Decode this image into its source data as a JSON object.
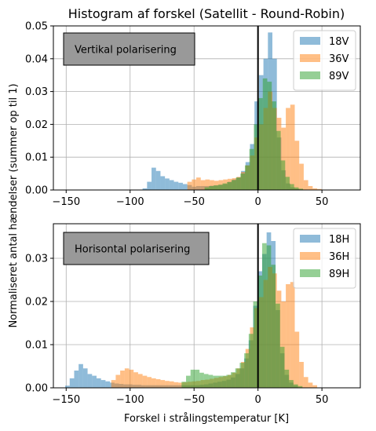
{
  "chart_data": {
    "title": "Histogram af forskel (Satellit - Round-Robin)",
    "xlabel": "Forskel i strålingstemperatur [K]",
    "ylabel": "Normaliseret antal hændelser (summer op til 1)",
    "grid": true,
    "xlim": [
      -160,
      80
    ],
    "xticks": [
      -150,
      -100,
      -50,
      0,
      50
    ],
    "xtick_labels": [
      "−150",
      "−100",
      "−50",
      "0",
      "50"
    ],
    "bin_width": 3.5,
    "vline_x": 0,
    "colors": {
      "c1": "#1f77b4",
      "c2": "#ff7f0e",
      "c3": "#2ca02c"
    },
    "panels": [
      {
        "type": "histogram",
        "annotation": "Vertikal polarisering",
        "legend_position": "top-right",
        "ylim": [
          0,
          0.05
        ],
        "yticks": [
          0,
          0.01,
          0.02,
          0.03,
          0.04,
          0.05
        ],
        "ytick_labels": [
          "0.00",
          "0.01",
          "0.02",
          "0.03",
          "0.04",
          "0.05"
        ],
        "series": [
          {
            "name": "18V",
            "color": "#1f77b4",
            "bins": [
              [
                -88.5,
                0.0005
              ],
              [
                -85,
                0.0025
              ],
              [
                -81.5,
                0.0068
              ],
              [
                -78,
                0.0058
              ],
              [
                -74.5,
                0.0042
              ],
              [
                -71,
                0.0035
              ],
              [
                -67.5,
                0.003
              ],
              [
                -64,
                0.0025
              ],
              [
                -60.5,
                0.0022
              ],
              [
                -57,
                0.0018
              ],
              [
                -53.5,
                0.0015
              ],
              [
                -50,
                0.001
              ],
              [
                -46.5,
                0.0012
              ],
              [
                -43,
                0.0012
              ],
              [
                -39.5,
                0.0012
              ],
              [
                -36,
                0.0013
              ],
              [
                -32.5,
                0.0014
              ],
              [
                -29,
                0.0016
              ],
              [
                -25.5,
                0.0018
              ],
              [
                -22,
                0.0025
              ],
              [
                -18.5,
                0.0032
              ],
              [
                -15,
                0.0038
              ],
              [
                -11.5,
                0.0058
              ],
              [
                -8,
                0.0085
              ],
              [
                -4.5,
                0.014
              ],
              [
                -1,
                0.027
              ],
              [
                2.5,
                0.035
              ],
              [
                6,
                0.04
              ],
              [
                9.5,
                0.048
              ],
              [
                13,
                0.04
              ],
              [
                16.5,
                0.016
              ],
              [
                20,
                0.006
              ],
              [
                23.5,
                0.002
              ],
              [
                27,
                0.0008
              ],
              [
                30.5,
                0.0004
              ]
            ]
          },
          {
            "name": "36V",
            "color": "#ff7f0e",
            "bins": [
              [
                -53.5,
                0.0025
              ],
              [
                -50,
                0.0032
              ],
              [
                -46.5,
                0.0038
              ],
              [
                -43,
                0.003
              ],
              [
                -39.5,
                0.0032
              ],
              [
                -36,
                0.003
              ],
              [
                -32.5,
                0.0028
              ],
              [
                -29,
                0.003
              ],
              [
                -25.5,
                0.0032
              ],
              [
                -22,
                0.0034
              ],
              [
                -18.5,
                0.0036
              ],
              [
                -15,
                0.004
              ],
              [
                -11.5,
                0.0055
              ],
              [
                -8,
                0.0075
              ],
              [
                -4.5,
                0.0105
              ],
              [
                -1,
                0.016
              ],
              [
                2.5,
                0.02
              ],
              [
                6,
                0.025
              ],
              [
                9.5,
                0.03
              ],
              [
                13,
                0.025
              ],
              [
                16.5,
                0.022
              ],
              [
                20,
                0.019
              ],
              [
                23.5,
                0.025
              ],
              [
                27,
                0.026
              ],
              [
                30.5,
                0.015
              ],
              [
                34,
                0.008
              ],
              [
                37.5,
                0.003
              ],
              [
                41,
                0.0012
              ],
              [
                44.5,
                0.0005
              ],
              [
                48,
                0.0003
              ]
            ]
          },
          {
            "name": "89V",
            "color": "#2ca02c",
            "bins": [
              [
                -40,
                0.0008
              ],
              [
                -36.5,
                0.0012
              ],
              [
                -33,
                0.0014
              ],
              [
                -29.5,
                0.0016
              ],
              [
                -26,
                0.002
              ],
              [
                -22.5,
                0.0024
              ],
              [
                -19,
                0.003
              ],
              [
                -15.5,
                0.0038
              ],
              [
                -12,
                0.005
              ],
              [
                -8.5,
                0.0075
              ],
              [
                -5,
                0.0125
              ],
              [
                -1.5,
                0.02
              ],
              [
                2,
                0.028
              ],
              [
                5.5,
                0.034
              ],
              [
                9,
                0.033
              ],
              [
                12.5,
                0.027
              ],
              [
                16,
                0.018
              ],
              [
                19.5,
                0.009
              ],
              [
                23,
                0.004
              ],
              [
                26.5,
                0.0018
              ],
              [
                30,
                0.0008
              ],
              [
                33.5,
                0.0004
              ]
            ]
          }
        ]
      },
      {
        "type": "histogram",
        "annotation": "Horisontal polarisering",
        "legend_position": "top-right",
        "ylim": [
          0,
          0.038
        ],
        "yticks": [
          0,
          0.01,
          0.02,
          0.03
        ],
        "ytick_labels": [
          "0.00",
          "0.01",
          "0.02",
          "0.03"
        ],
        "series": [
          {
            "name": "18H",
            "color": "#1f77b4",
            "bins": [
              [
                -149,
                0.0005
              ],
              [
                -145.5,
                0.0022
              ],
              [
                -142,
                0.004
              ],
              [
                -138.5,
                0.0055
              ],
              [
                -135,
                0.0045
              ],
              [
                -131.5,
                0.0032
              ],
              [
                -128,
                0.0028
              ],
              [
                -124.5,
                0.0022
              ],
              [
                -121,
                0.0018
              ],
              [
                -117.5,
                0.0015
              ],
              [
                -114,
                0.0012
              ],
              [
                -110.5,
                0.001
              ],
              [
                -107,
                0.0009
              ],
              [
                -103.5,
                0.0008
              ],
              [
                -100,
                0.0008
              ],
              [
                -96.5,
                0.0007
              ],
              [
                -93,
                0.0007
              ],
              [
                -89.5,
                0.0006
              ],
              [
                -86,
                0.0006
              ],
              [
                -82.5,
                0.0006
              ],
              [
                -79,
                0.0006
              ],
              [
                -75.5,
                0.0006
              ],
              [
                -72,
                0.0006
              ],
              [
                -68.5,
                0.0006
              ],
              [
                -65,
                0.0006
              ],
              [
                -61.5,
                0.0006
              ],
              [
                -58,
                0.0006
              ],
              [
                -54.5,
                0.0006
              ],
              [
                -51,
                0.0006
              ],
              [
                -47.5,
                0.0006
              ],
              [
                -44,
                0.0007
              ],
              [
                -40.5,
                0.0008
              ],
              [
                -37,
                0.001
              ],
              [
                -33.5,
                0.0012
              ],
              [
                -30,
                0.0014
              ],
              [
                -26.5,
                0.0016
              ],
              [
                -23,
                0.0019
              ],
              [
                -19.5,
                0.0024
              ],
              [
                -16,
                0.0032
              ],
              [
                -12.5,
                0.0045
              ],
              [
                -9,
                0.0068
              ],
              [
                -5.5,
                0.011
              ],
              [
                -2,
                0.019
              ],
              [
                1.5,
                0.027
              ],
              [
                5,
                0.031
              ],
              [
                8.5,
                0.036
              ],
              [
                12,
                0.034
              ],
              [
                15.5,
                0.018
              ],
              [
                19,
                0.008
              ],
              [
                22.5,
                0.003
              ],
              [
                26,
                0.0012
              ],
              [
                29.5,
                0.0005
              ]
            ]
          },
          {
            "name": "36H",
            "color": "#ff7f0e",
            "bins": [
              [
                -113,
                0.0018
              ],
              [
                -109.5,
                0.003
              ],
              [
                -106,
                0.004
              ],
              [
                -102.5,
                0.0045
              ],
              [
                -99,
                0.0042
              ],
              [
                -95.5,
                0.0036
              ],
              [
                -92,
                0.0032
              ],
              [
                -88.5,
                0.0028
              ],
              [
                -85,
                0.0025
              ],
              [
                -81.5,
                0.0022
              ],
              [
                -78,
                0.002
              ],
              [
                -74.5,
                0.0018
              ],
              [
                -71,
                0.0016
              ],
              [
                -67.5,
                0.0015
              ],
              [
                -64,
                0.0013
              ],
              [
                -60.5,
                0.0012
              ],
              [
                -57,
                0.0013
              ],
              [
                -53.5,
                0.0014
              ],
              [
                -50,
                0.0015
              ],
              [
                -46.5,
                0.0016
              ],
              [
                -43,
                0.0018
              ],
              [
                -39.5,
                0.0019
              ],
              [
                -36,
                0.0021
              ],
              [
                -32.5,
                0.0023
              ],
              [
                -29,
                0.0025
              ],
              [
                -25.5,
                0.0027
              ],
              [
                -22,
                0.003
              ],
              [
                -18.5,
                0.0035
              ],
              [
                -15,
                0.0045
              ],
              [
                -11.5,
                0.006
              ],
              [
                -8,
                0.009
              ],
              [
                -4.5,
                0.014
              ],
              [
                -1,
                0.0185
              ],
              [
                2.5,
                0.021
              ],
              [
                6,
                0.025
              ],
              [
                9.5,
                0.028
              ],
              [
                13,
                0.0265
              ],
              [
                16.5,
                0.0225
              ],
              [
                20,
                0.02
              ],
              [
                23.5,
                0.024
              ],
              [
                27,
                0.0245
              ],
              [
                30.5,
                0.013
              ],
              [
                34,
                0.006
              ],
              [
                37.5,
                0.0025
              ],
              [
                41,
                0.0012
              ],
              [
                44.5,
                0.0006
              ]
            ]
          },
          {
            "name": "89H",
            "color": "#2ca02c",
            "bins": [
              [
                -58,
                0.0014
              ],
              [
                -54.5,
                0.0028
              ],
              [
                -51,
                0.0042
              ],
              [
                -47.5,
                0.0042
              ],
              [
                -44,
                0.0035
              ],
              [
                -40.5,
                0.0032
              ],
              [
                -37,
                0.003
              ],
              [
                -33.5,
                0.0028
              ],
              [
                -30,
                0.0028
              ],
              [
                -26.5,
                0.0028
              ],
              [
                -23,
                0.003
              ],
              [
                -19.5,
                0.0036
              ],
              [
                -16,
                0.0045
              ],
              [
                -12.5,
                0.0058
              ],
              [
                -9,
                0.008
              ],
              [
                -5.5,
                0.0125
              ],
              [
                -2,
                0.02
              ],
              [
                1.5,
                0.026
              ],
              [
                5,
                0.0335
              ],
              [
                8.5,
                0.033
              ],
              [
                12,
                0.0285
              ],
              [
                15.5,
                0.0195
              ],
              [
                19,
                0.0095
              ],
              [
                22.5,
                0.0042
              ],
              [
                26,
                0.0018
              ],
              [
                29.5,
                0.0008
              ],
              [
                33,
                0.0004
              ]
            ]
          }
        ]
      }
    ]
  }
}
